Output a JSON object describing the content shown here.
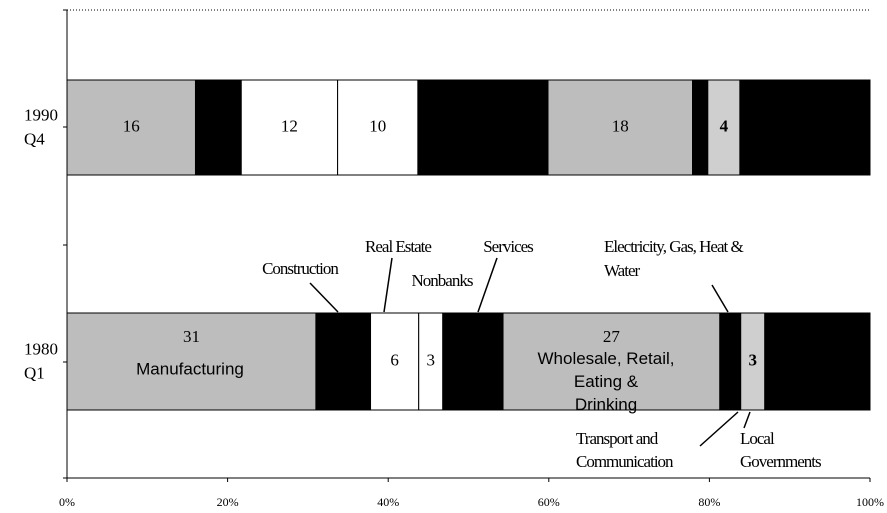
{
  "chart_data": {
    "type": "stacked-bar-horizontal",
    "categories": [
      "1990 Q4",
      "1980 Q1"
    ],
    "xlim": [
      0,
      100
    ],
    "xticks": [
      {
        "value": 0,
        "label": "0%"
      },
      {
        "value": 20,
        "label": "20%"
      },
      {
        "value": 40,
        "label": "40%"
      },
      {
        "value": 60,
        "label": "60%"
      },
      {
        "value": 80,
        "label": "80%"
      },
      {
        "value": 100,
        "label": "100%"
      }
    ],
    "series": [
      {
        "name": "Manufacturing",
        "color": "#bdbdbd",
        "values": [
          16,
          31
        ],
        "value_labels": [
          "16",
          "31"
        ]
      },
      {
        "name": "Construction",
        "color": "#000000",
        "values": [
          5.7,
          6.8
        ],
        "value_labels": [
          null,
          null
        ]
      },
      {
        "name": "Real Estate",
        "color": "#ffffff",
        "values": [
          12,
          6
        ],
        "value_labels": [
          "12",
          "6"
        ]
      },
      {
        "name": "Nonbanks",
        "color": "#ffffff",
        "values": [
          10,
          3
        ],
        "value_labels": [
          "10",
          "3"
        ]
      },
      {
        "name": "Services",
        "color": "#000000",
        "values": [
          16.2,
          7.5
        ],
        "value_labels": [
          null,
          null
        ]
      },
      {
        "name": "Wholesale, Retail, Eating & Drinking",
        "color": "#bdbdbd",
        "values": [
          18,
          27
        ],
        "value_labels": [
          "18",
          "27"
        ]
      },
      {
        "name": "Transport and Communication",
        "color": "#000000",
        "values": [
          1,
          1.5
        ],
        "value_labels": [
          null,
          null
        ]
      },
      {
        "name": "Electricity, Gas, Heat & Water",
        "color": "#000000",
        "values": [
          0.9,
          1.1
        ],
        "value_labels": [
          null,
          null
        ]
      },
      {
        "name": "Local Governments",
        "color": "#cfcfcf",
        "values": [
          4,
          3
        ],
        "value_labels": [
          "4",
          "3"
        ]
      },
      {
        "color": "#000000",
        "values": [
          16.2,
          13.1
        ],
        "value_labels": [
          null,
          null
        ]
      }
    ]
  }
}
